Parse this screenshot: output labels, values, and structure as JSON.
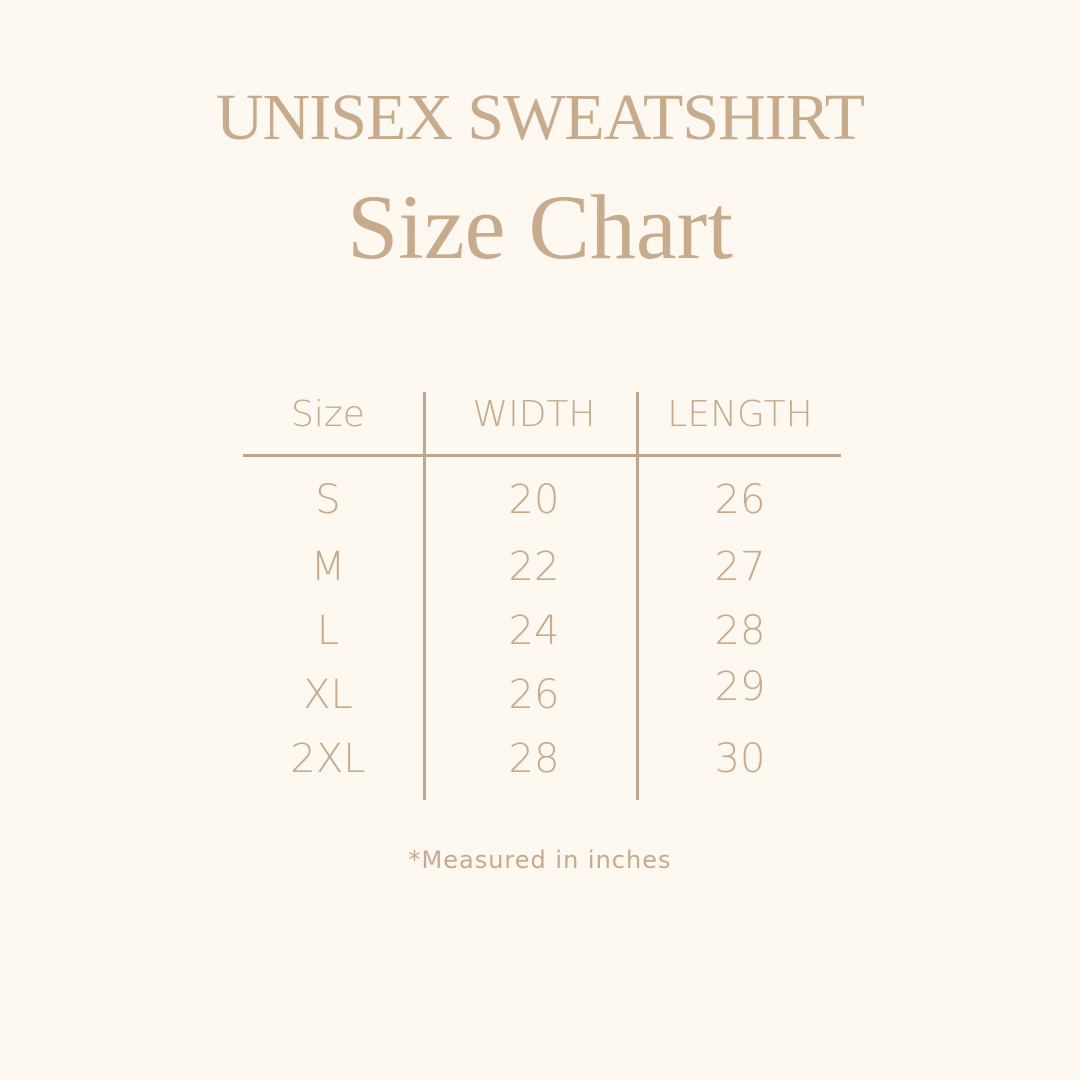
{
  "title": "UNISEX SWEATSHIRT",
  "subtitle": "Size Chart",
  "table": {
    "headers": [
      "Size",
      "WIDTH",
      "LENGTH"
    ],
    "rows": [
      [
        "S",
        "20",
        "26"
      ],
      [
        "M",
        "22",
        "27"
      ],
      [
        "L",
        "24",
        "28"
      ],
      [
        "XL",
        "26",
        "29"
      ],
      [
        "2XL",
        "28",
        "30"
      ]
    ]
  },
  "note": "*Measured in inches",
  "colors": {
    "background": "#fdf8f0",
    "text": "#c6aa8b",
    "lines": "#bca690"
  }
}
